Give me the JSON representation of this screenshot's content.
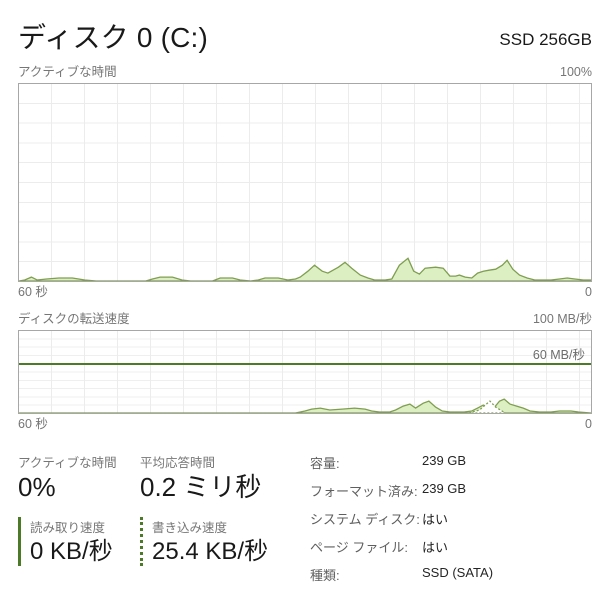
{
  "header": {
    "title": "ディスク 0 (C:)",
    "subtitle": "SSD 256GB"
  },
  "active_chart": {
    "label": "アクティブな時間",
    "scale_max": "100%",
    "axis_left": "60 秒",
    "axis_right": "0"
  },
  "transfer_chart": {
    "label": "ディスクの転送速度",
    "scale_max": "100 MB/秒",
    "threshold_label": "60 MB/秒",
    "axis_left": "60 秒",
    "axis_right": "0"
  },
  "stats": {
    "active_time": {
      "label": "アクティブな時間",
      "value": "0%"
    },
    "avg_response": {
      "label": "平均応答時間",
      "value": "0.2 ミリ秒"
    },
    "read_speed": {
      "label": "読み取り速度",
      "value": "0 KB/秒"
    },
    "write_speed": {
      "label": "書き込み速度",
      "value": "25.4 KB/秒"
    }
  },
  "details": [
    {
      "label": "容量:",
      "value": "239 GB"
    },
    {
      "label": "フォーマット済み:",
      "value": "239 GB"
    },
    {
      "label": "システム ディスク:",
      "value": "はい"
    },
    {
      "label": "ページ ファイル:",
      "value": "はい"
    },
    {
      "label": "種類:",
      "value": "SSD (SATA)"
    }
  ],
  "colors": {
    "accent_green_dark": "#4d7a26",
    "area_fill": "#dcefc2",
    "area_stroke": "#7f9e50",
    "grid": "#ececec",
    "chart_border": "#a7a7a7",
    "label_gray": "#767676"
  },
  "chart_data": [
    {
      "type": "area",
      "title": "アクティブな時間",
      "xlabel": "秒",
      "ylabel": "%",
      "x_range": [
        60,
        0
      ],
      "y_range": [
        0,
        100
      ],
      "grid": true,
      "series": [
        {
          "name": "active-time-percent",
          "fill": "#dcefc2",
          "stroke": "#7f9e50",
          "points": [
            [
              60,
              0
            ],
            [
              59.4,
              0.5
            ],
            [
              58.7,
              2
            ],
            [
              58.1,
              0.5
            ],
            [
              57.1,
              1
            ],
            [
              55.8,
              1.5
            ],
            [
              54.4,
              1.5
            ],
            [
              53.1,
              0.5
            ],
            [
              51.9,
              0
            ],
            [
              46.7,
              0
            ],
            [
              46,
              1
            ],
            [
              45.2,
              2
            ],
            [
              43.9,
              2
            ],
            [
              42.9,
              0.5
            ],
            [
              42,
              0
            ],
            [
              39.7,
              0
            ],
            [
              38.9,
              1.5
            ],
            [
              37.6,
              1.5
            ],
            [
              36.8,
              0.5
            ],
            [
              35.7,
              0
            ],
            [
              34.9,
              0.5
            ],
            [
              34.2,
              1.5
            ],
            [
              32.8,
              1.5
            ],
            [
              31.8,
              0.5
            ],
            [
              31,
              1
            ],
            [
              30.5,
              2
            ],
            [
              29.7,
              5
            ],
            [
              29,
              8
            ],
            [
              28.2,
              5
            ],
            [
              27.6,
              4
            ],
            [
              26.5,
              7
            ],
            [
              25.8,
              9.5
            ],
            [
              25.1,
              6.5
            ],
            [
              24.2,
              3
            ],
            [
              23.4,
              1.5
            ],
            [
              22.7,
              0.5
            ],
            [
              21.6,
              0.5
            ],
            [
              20.9,
              1
            ],
            [
              20.1,
              8
            ],
            [
              19.2,
              11.5
            ],
            [
              18.6,
              5
            ],
            [
              18,
              3.5
            ],
            [
              17.4,
              6.5
            ],
            [
              16.3,
              7
            ],
            [
              15.5,
              6.5
            ],
            [
              14.8,
              2.5
            ],
            [
              14.2,
              2.5
            ],
            [
              13.8,
              3
            ],
            [
              13.2,
              2
            ],
            [
              12.5,
              1.5
            ],
            [
              11.9,
              4
            ],
            [
              11.3,
              5
            ],
            [
              10.7,
              5.5
            ],
            [
              10,
              6
            ],
            [
              9.3,
              8
            ],
            [
              8.8,
              10.5
            ],
            [
              8.2,
              6
            ],
            [
              7.5,
              3
            ],
            [
              6.7,
              1.5
            ],
            [
              5.9,
              0.5
            ],
            [
              4.9,
              0.5
            ],
            [
              4.2,
              0.5
            ],
            [
              3.3,
              1
            ],
            [
              2.5,
              1.5
            ],
            [
              1.7,
              1
            ],
            [
              0.8,
              0.5
            ],
            [
              0,
              0.5
            ]
          ]
        }
      ]
    },
    {
      "type": "area",
      "title": "ディスクの転送速度",
      "xlabel": "秒",
      "ylabel": "MB/秒",
      "x_range": [
        60,
        0
      ],
      "y_range": [
        0,
        100
      ],
      "grid": true,
      "threshold": {
        "value": 60,
        "label": "60 MB/秒",
        "color": "#4d7a26"
      },
      "series": [
        {
          "name": "read-speed",
          "fill": "#dcefc2",
          "stroke": "#7f9e50",
          "points": [
            [
              60,
              0
            ],
            [
              31,
              0
            ],
            [
              30,
              2.4
            ],
            [
              29.3,
              4.8
            ],
            [
              28.4,
              6
            ],
            [
              27.4,
              3.6
            ],
            [
              26.1,
              4.8
            ],
            [
              24.8,
              6
            ],
            [
              23.7,
              4.8
            ],
            [
              23,
              2.4
            ],
            [
              22.2,
              1.2
            ],
            [
              21.1,
              1.2
            ],
            [
              20.5,
              3.6
            ],
            [
              19.7,
              8.4
            ],
            [
              19,
              10.8
            ],
            [
              18.4,
              6
            ],
            [
              17.6,
              12
            ],
            [
              17,
              14.5
            ],
            [
              16.3,
              7.2
            ],
            [
              15.6,
              2.4
            ],
            [
              14.8,
              1.2
            ],
            [
              13.3,
              1.2
            ],
            [
              12.5,
              2.4
            ],
            [
              11.9,
              6
            ],
            [
              11.3,
              9.6
            ],
            [
              10.8,
              7.2
            ],
            [
              10.2,
              6
            ],
            [
              9.6,
              14.5
            ],
            [
              9.1,
              16.9
            ],
            [
              8.5,
              10.8
            ],
            [
              7.8,
              8.4
            ],
            [
              7.1,
              6
            ],
            [
              6.4,
              2.4
            ],
            [
              5.4,
              1.2
            ],
            [
              4.2,
              1.2
            ],
            [
              3.3,
              2.4
            ],
            [
              2.1,
              2.4
            ],
            [
              1.3,
              1.2
            ],
            [
              0,
              0
            ]
          ]
        },
        {
          "name": "write-speed",
          "fill": "#ffffff",
          "stroke": "#7f9e50",
          "dash": "2,2",
          "points": [
            [
              12.8,
              0
            ],
            [
              11.7,
              3.6
            ],
            [
              11.1,
              9.6
            ],
            [
              10.6,
              14.5
            ],
            [
              10,
              7.2
            ],
            [
              9.5,
              3.6
            ],
            [
              9,
              0
            ]
          ]
        }
      ]
    }
  ]
}
